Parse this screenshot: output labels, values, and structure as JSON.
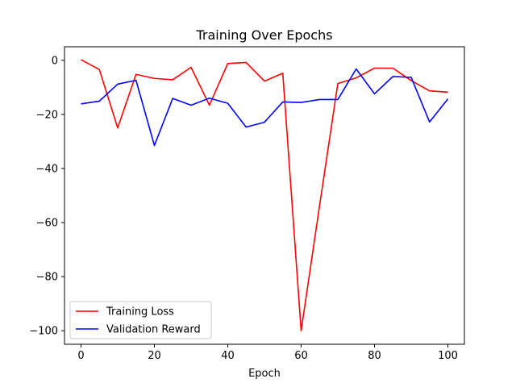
{
  "chart_data": {
    "type": "line",
    "title": "Training Over Epochs",
    "xlabel": "Epoch",
    "ylabel": "",
    "xlim": [
      -4.5,
      104.5
    ],
    "ylim": [
      -105,
      5
    ],
    "xticks": [
      0,
      20,
      40,
      60,
      80,
      100
    ],
    "yticks": [
      0,
      -20,
      -40,
      -60,
      -80,
      -100
    ],
    "xtick_labels": [
      "0",
      "20",
      "40",
      "60",
      "80",
      "100"
    ],
    "ytick_labels": [
      "0",
      "−20",
      "−40",
      "−60",
      "−80",
      "−100"
    ],
    "grid": false,
    "legend_position": "lower-left",
    "x": [
      0,
      5,
      10,
      15,
      20,
      25,
      30,
      35,
      40,
      45,
      50,
      55,
      60,
      65,
      70,
      75,
      80,
      85,
      90,
      95,
      100
    ],
    "series": [
      {
        "name": "Training Loss",
        "color": "#ff0000",
        "values": [
          0.2,
          -3.4,
          -25.0,
          -5.2,
          -6.7,
          -7.2,
          -2.6,
          -16.6,
          -1.2,
          -0.8,
          -7.7,
          -4.8,
          -100.0,
          -54.0,
          -8.6,
          -6.5,
          -2.9,
          -2.9,
          -7.5,
          -11.3,
          -11.8
        ]
      },
      {
        "name": "Validation Reward",
        "color": "#0000ff",
        "values": [
          -16.1,
          -15.1,
          -8.8,
          -7.4,
          -31.5,
          -14.1,
          -16.6,
          -14.0,
          -15.9,
          -24.7,
          -22.9,
          -15.4,
          -15.6,
          -14.5,
          -14.5,
          -3.2,
          -12.4,
          -6.0,
          -6.3,
          -22.8,
          -14.3
        ]
      }
    ]
  }
}
